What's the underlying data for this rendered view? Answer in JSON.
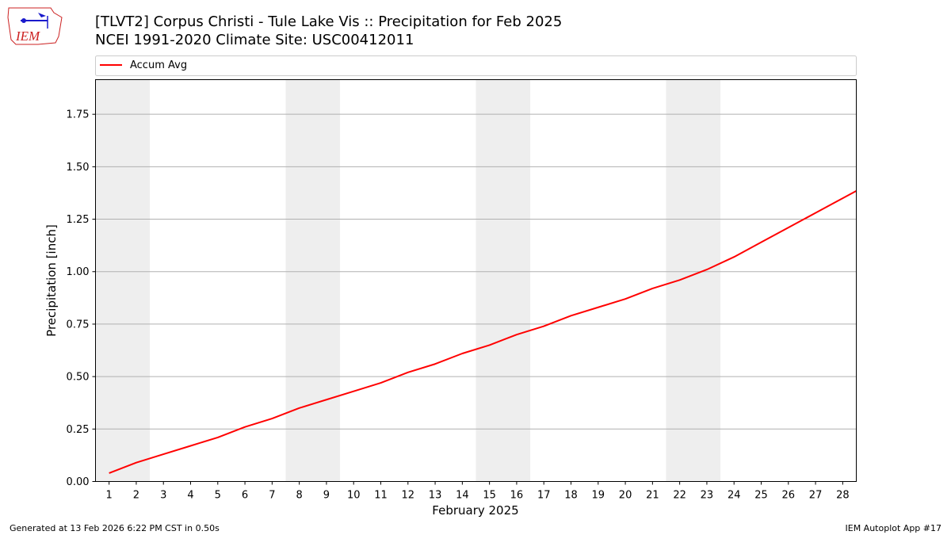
{
  "header": {
    "logo_text": "IEM",
    "title_line1": "[TLVT2] Corpus Christi - Tule Lake Vis :: Precipitation for Feb 2025",
    "title_line2": "NCEI 1991-2020 Climate Site: USC00412011"
  },
  "footer": {
    "generated": "Generated at 13 Feb 2026 6:22 PM CST in 0.50s",
    "app": "IEM Autoplot App #17"
  },
  "colors": {
    "line": "#ff0000",
    "weekend_band": "#eeeeee",
    "grid": "#b0b0b0",
    "logo_red": "#cc2222",
    "logo_blue": "#1a1acc"
  },
  "chart_data": {
    "type": "line",
    "xlabel": "February 2025",
    "ylabel": "Precipitation [inch]",
    "x": [
      1,
      2,
      3,
      4,
      5,
      6,
      7,
      8,
      9,
      10,
      11,
      12,
      13,
      14,
      15,
      16,
      17,
      18,
      19,
      20,
      21,
      22,
      23,
      24,
      25,
      26,
      27,
      28
    ],
    "xlim": [
      0.5,
      28.5
    ],
    "ylim": [
      0,
      1.915
    ],
    "yticks": [
      0.0,
      0.25,
      0.5,
      0.75,
      1.0,
      1.25,
      1.5,
      1.75
    ],
    "ytick_labels": [
      "0.00",
      "0.25",
      "0.50",
      "0.75",
      "1.00",
      "1.25",
      "1.50",
      "1.75"
    ],
    "grid": "y",
    "legend_position": "top",
    "weekend_bands": [
      [
        0.5,
        2.5
      ],
      [
        7.5,
        9.5
      ],
      [
        14.5,
        16.5
      ],
      [
        21.5,
        23.5
      ]
    ],
    "series": [
      {
        "name": "Accum Avg",
        "values": [
          0.04,
          0.09,
          0.13,
          0.17,
          0.21,
          0.26,
          0.3,
          0.35,
          0.39,
          0.43,
          0.47,
          0.52,
          0.56,
          0.61,
          0.65,
          0.7,
          0.74,
          0.79,
          0.83,
          0.87,
          0.92,
          0.96,
          1.01,
          1.07,
          1.14,
          1.21,
          1.28,
          1.35
        ],
        "end_value": 1.385
      }
    ]
  }
}
